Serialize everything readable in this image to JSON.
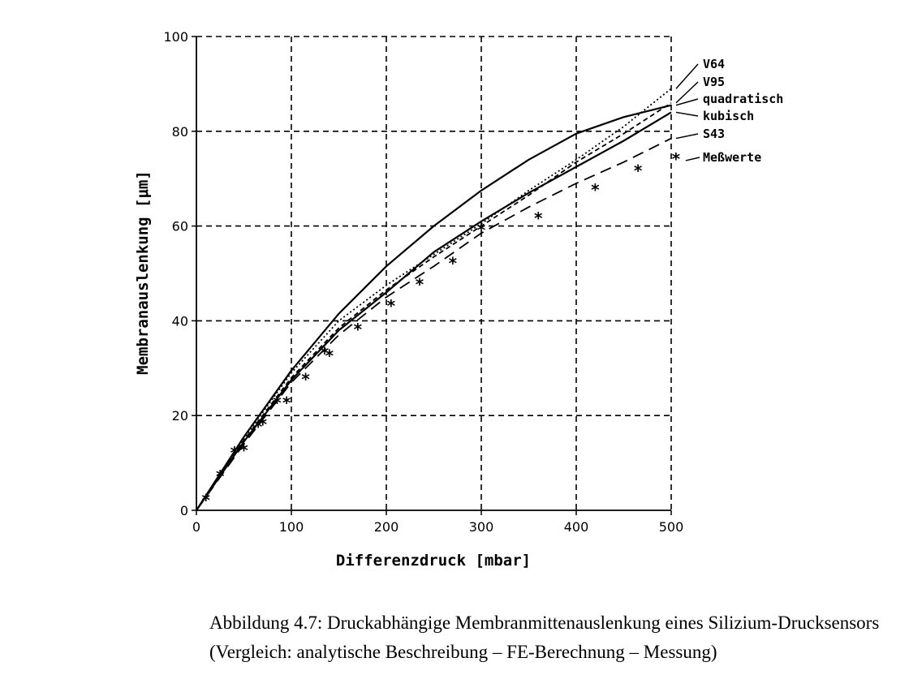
{
  "chart_data": {
    "type": "line",
    "xlabel": "Differenzdruck [mbar]",
    "ylabel": "Membranauslenkung [μm]",
    "xlim": [
      0,
      500
    ],
    "ylim": [
      0,
      100
    ],
    "xticks": [
      "0",
      "100",
      "200",
      "300",
      "400",
      "500"
    ],
    "yticks": [
      "0",
      "20",
      "40",
      "60",
      "80",
      "100"
    ],
    "grid": true,
    "legend_placement": "right",
    "series": [
      {
        "name": "V64",
        "style": "dotted",
        "x": [
          0,
          50,
          100,
          150,
          200,
          250,
          300,
          350,
          400,
          450,
          500
        ],
        "y": [
          0,
          15.2,
          29.0,
          40.0,
          47.5,
          54.0,
          60.5,
          67.5,
          74.0,
          81.0,
          89.0
        ]
      },
      {
        "name": "V95",
        "style": "dashed",
        "x": [
          0,
          50,
          100,
          150,
          200,
          250,
          300,
          350,
          400,
          450,
          500
        ],
        "y": [
          0,
          14.8,
          28.0,
          38.5,
          46.5,
          53.5,
          60.0,
          66.5,
          73.5,
          79.5,
          86.0
        ]
      },
      {
        "name": "quadratisch",
        "style": "solid",
        "x": [
          0,
          50,
          100,
          150,
          200,
          250,
          300,
          350,
          400,
          450,
          500
        ],
        "y": [
          0,
          15.5,
          29.5,
          41.5,
          51.5,
          60.0,
          67.5,
          74.0,
          79.5,
          83.0,
          85.5
        ]
      },
      {
        "name": "kubisch",
        "style": "solid",
        "x": [
          0,
          50,
          100,
          150,
          200,
          250,
          300,
          350,
          400,
          450,
          500
        ],
        "y": [
          0,
          14.5,
          27.5,
          38.0,
          46.0,
          54.5,
          61.0,
          67.0,
          72.5,
          78.0,
          84.0
        ]
      },
      {
        "name": "S43",
        "style": "long-dashed",
        "x": [
          0,
          50,
          100,
          150,
          200,
          250,
          300,
          350,
          400,
          450,
          500
        ],
        "y": [
          0,
          14.0,
          27.0,
          37.0,
          45.0,
          51.5,
          58.5,
          64.0,
          69.0,
          73.5,
          78.5
        ]
      },
      {
        "name": "Meßwerte",
        "style": "markers",
        "marker": "*",
        "x": [
          10,
          25,
          40,
          50,
          65,
          70,
          85,
          95,
          115,
          135,
          140,
          170,
          205,
          235,
          270,
          300,
          360,
          420,
          465,
          505
        ],
        "y": [
          2.5,
          7.5,
          12.5,
          13.0,
          18.0,
          18.5,
          23.0,
          23.0,
          28.0,
          33.5,
          33.0,
          38.5,
          43.5,
          48.0,
          52.5,
          59.5,
          62.0,
          68.0,
          72.0,
          74.5
        ]
      }
    ]
  },
  "caption": {
    "line1": "Abbildung 4.7: Druckabhängige Membranmittenauslenkung eines Silizium-Drucksensors",
    "line2": "(Vergleich: analytische Beschreibung – FE-Berechnung – Messung)"
  }
}
